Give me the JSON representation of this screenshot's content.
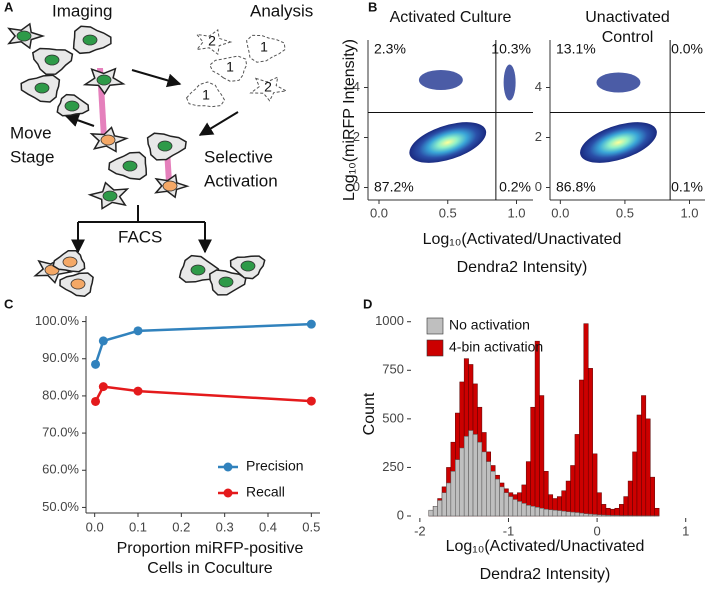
{
  "diagram": {
    "panel": "A",
    "imaging": "Imaging",
    "analysis": "Analysis",
    "move_stage": [
      "Move",
      "Stage"
    ],
    "selective_activation": [
      "Selective",
      "Activation"
    ],
    "facs": "FACS",
    "cell_ids": [
      "2",
      "1",
      "1",
      "1",
      "2"
    ]
  },
  "chart_data": [
    {
      "panel": "B",
      "type": "scatter",
      "title": [
        "Activated Culture"
      ],
      "y_label": "Log₁₀(miRFP Intensity)",
      "x_label": [
        "Log₁₀(Activated/Unactivated",
        "Dendra2 Intensity)"
      ],
      "quadrant_labels": [
        "2.3%",
        "10.3%",
        "87.2%",
        "0.2%"
      ],
      "gates": {
        "x": 0.85,
        "y": 3
      },
      "clusters": [
        {
          "x": 0.5,
          "y": 1.8
        },
        {
          "x": 0.45,
          "y": 4.3
        },
        {
          "x": 0.95,
          "y": 4.2
        }
      ],
      "xlim": [
        -0.08,
        1.12
      ],
      "ylim": [
        -0.5,
        5.9
      ],
      "xticks": [
        {
          "value": 0,
          "label": "0.0"
        },
        0.5,
        {
          "value": 1,
          "label": "1.0"
        }
      ],
      "yticks": [
        0,
        2,
        4
      ]
    },
    {
      "panel": null,
      "type": "scatter",
      "title": [
        "Unactivated",
        "Control"
      ],
      "quadrant_labels": [
        "13.1%",
        "0.0%",
        "86.8%",
        "0.1%"
      ],
      "gates": {
        "x": 0.85,
        "y": 3
      },
      "clusters": [
        {
          "x": 0.45,
          "y": 1.8
        },
        {
          "x": 0.45,
          "y": 4.2
        }
      ],
      "xlim": [
        -0.08,
        1.12
      ],
      "ylim": [
        -0.5,
        5.9
      ],
      "xticks": [
        {
          "value": 0,
          "label": "0.0"
        },
        0.5,
        {
          "value": 1,
          "label": "1.0"
        }
      ],
      "yticks": [
        0,
        2,
        4
      ]
    },
    {
      "panel": "C",
      "type": "line",
      "x_label": [
        "Proportion miRFP-positive",
        "Cells in Coculture"
      ],
      "x": [
        0.002,
        0.02,
        0.1,
        0.5
      ],
      "series": [
        {
          "name": "Precision",
          "color": "#3182bd",
          "values": [
            88.5,
            94.8,
            97.5,
            99.3
          ]
        },
        {
          "name": "Recall",
          "color": "#e41a1c",
          "values": [
            78.5,
            82.5,
            81.3,
            78.6
          ]
        }
      ],
      "xlim": [
        -0.02,
        0.52
      ],
      "ylim": [
        48.5,
        101.5
      ],
      "xticks": [
        {
          "value": 0,
          "label": "0.0"
        },
        0.1,
        0.2,
        0.3,
        0.4,
        0.5
      ],
      "yticks": [
        {
          "value": 50,
          "label": "50.0%"
        },
        {
          "value": 60,
          "label": "60.0%"
        },
        {
          "value": 70,
          "label": "70.0%"
        },
        {
          "value": 80,
          "label": "80.0%"
        },
        {
          "value": 90,
          "label": "90.0%"
        },
        {
          "value": 100,
          "label": "100.0%"
        }
      ],
      "legend": "bottom-right"
    },
    {
      "panel": "D",
      "type": "histogram",
      "y_label": "Count",
      "x_label": [
        "Log₁₀(Activated/Unactivated",
        "Dendra2 Intensity)"
      ],
      "bins": [
        -1.9,
        -1.85,
        -1.8,
        -1.75,
        -1.7,
        -1.65,
        -1.6,
        -1.55,
        -1.5,
        -1.45,
        -1.4,
        -1.35,
        -1.3,
        -1.25,
        -1.2,
        -1.15,
        -1.1,
        -1.05,
        -1.0,
        -0.95,
        -0.9,
        -0.85,
        -0.8,
        -0.75,
        -0.7,
        -0.65,
        -0.6,
        -0.55,
        -0.5,
        -0.45,
        -0.4,
        -0.35,
        -0.3,
        -0.25,
        -0.2,
        -0.15,
        -0.1,
        -0.05,
        0,
        0.05,
        0.1,
        0.15,
        0.2,
        0.25,
        0.3,
        0.35,
        0.4,
        0.45,
        0.5,
        0.55,
        0.6,
        0.65,
        0.7
      ],
      "series": [
        {
          "name": "No activation",
          "color": "#bfbfbf",
          "values": [
            30,
            50,
            80,
            120,
            170,
            230,
            290,
            350,
            410,
            440,
            420,
            380,
            330,
            280,
            230,
            190,
            150,
            120,
            100,
            85,
            75,
            65,
            55,
            50,
            45,
            40,
            35,
            32,
            30,
            28,
            25,
            22,
            20,
            18,
            15,
            12,
            10,
            8,
            6,
            5,
            4,
            3,
            3,
            2,
            2,
            2,
            1,
            1,
            1,
            1,
            1,
            1
          ]
        },
        {
          "name": "4-bin activation",
          "color": "#cc0000",
          "values": [
            25,
            50,
            90,
            150,
            250,
            380,
            530,
            690,
            810,
            780,
            680,
            560,
            430,
            330,
            260,
            210,
            170,
            140,
            120,
            110,
            120,
            160,
            280,
            560,
            900,
            620,
            230,
            110,
            90,
            100,
            130,
            180,
            260,
            420,
            700,
            990,
            760,
            320,
            120,
            60,
            40,
            35,
            40,
            60,
            100,
            180,
            330,
            520,
            620,
            500,
            200,
            40
          ]
        }
      ],
      "xlim": [
        -2.1,
        1.15
      ],
      "ylim": [
        0,
        1050
      ],
      "xticks": [
        -2,
        -1,
        0,
        1
      ],
      "yticks": [
        0,
        250,
        500,
        750,
        1000
      ],
      "legend": "top-left"
    }
  ]
}
